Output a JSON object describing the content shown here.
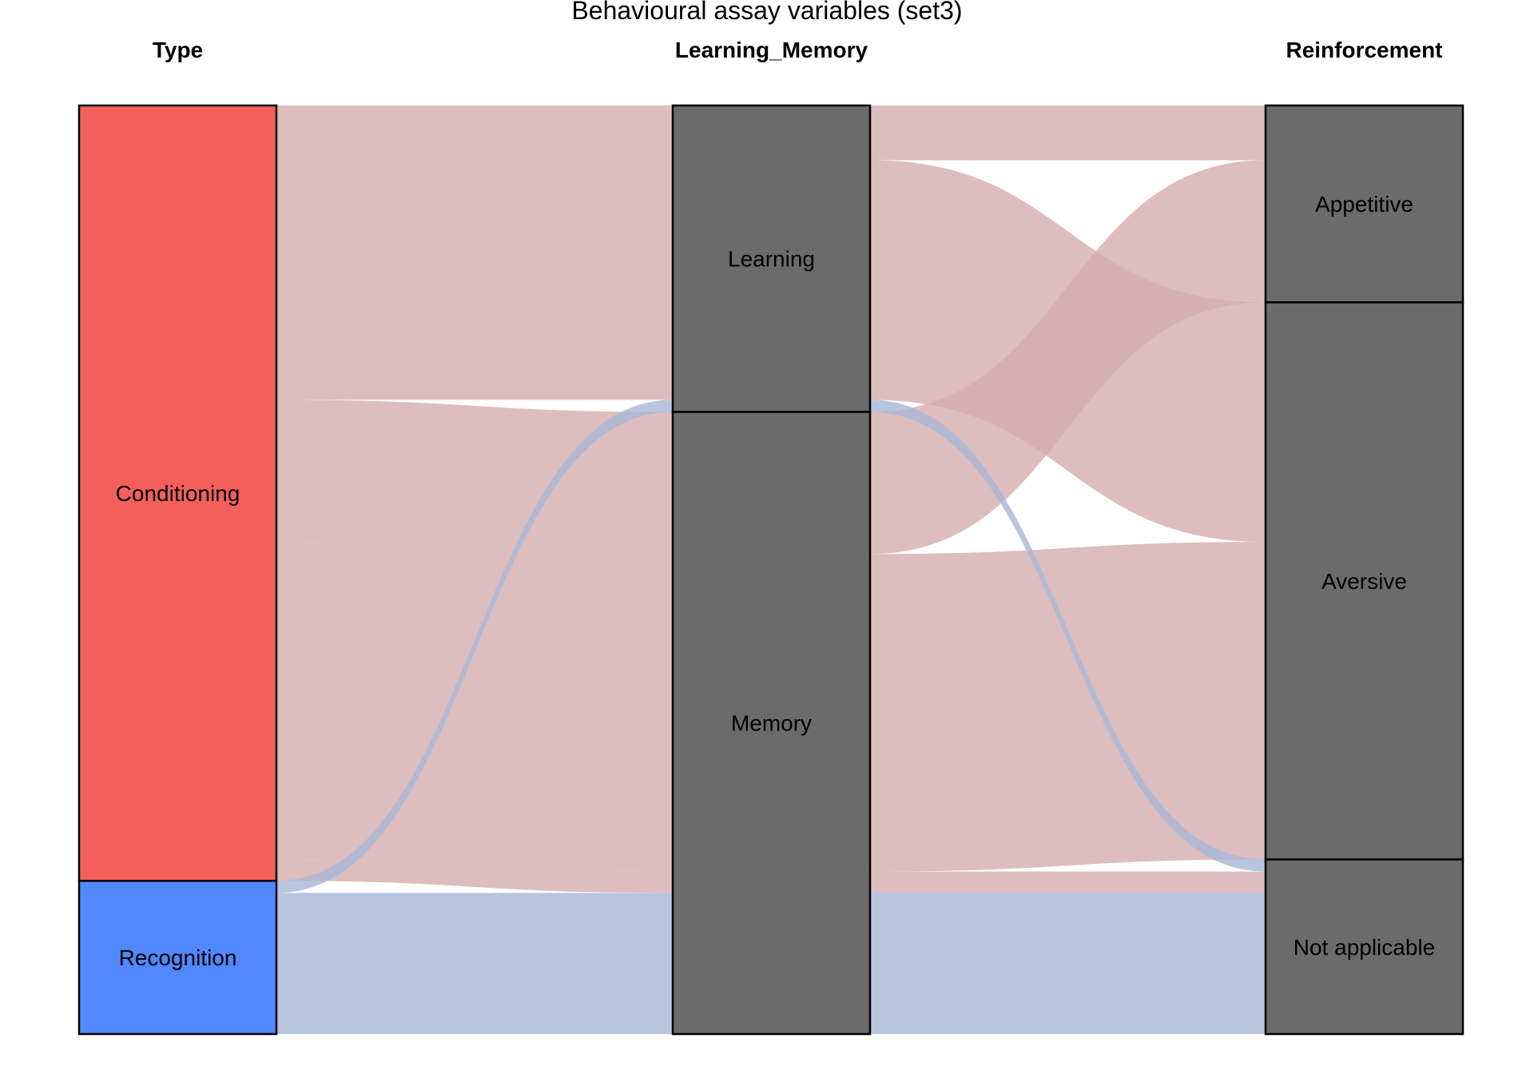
{
  "chart_data": {
    "type": "alluvial",
    "title": "Behavioural assay  variables (set3)",
    "axes": [
      "Type",
      "Learning_Memory",
      "Reinforcement"
    ],
    "colors": {
      "Conditioning": "#F3605C",
      "Recognition": "#5088FF",
      "stratum": "#6B6B6B",
      "flow_Conditioning": "#D5AFAE",
      "flow_Recognition": "#AAB8D8",
      "border": "#000000"
    },
    "strata": [
      {
        "axis": "Type",
        "items": [
          {
            "label": "Conditioning",
            "value": 83.5
          },
          {
            "label": "Recognition",
            "value": 16.5
          }
        ]
      },
      {
        "axis": "Learning_Memory",
        "items": [
          {
            "label": "Learning",
            "value": 33.0
          },
          {
            "label": "Memory",
            "value": 67.0
          }
        ]
      },
      {
        "axis": "Reinforcement",
        "items": [
          {
            "label": "Appetitive",
            "value": 21.2
          },
          {
            "label": "Aversive",
            "value": 60.0
          },
          {
            "label": "Not applicable",
            "value": 18.8
          }
        ]
      }
    ],
    "flows": [
      {
        "Type": "Conditioning",
        "Learning_Memory": "Learning",
        "Reinforcement": "Appetitive",
        "value": 5.9
      },
      {
        "Type": "Conditioning",
        "Learning_Memory": "Learning",
        "Reinforcement": "Aversive",
        "value": 25.8
      },
      {
        "Type": "Conditioning",
        "Learning_Memory": "Memory",
        "Reinforcement": "Appetitive",
        "value": 15.3
      },
      {
        "Type": "Conditioning",
        "Learning_Memory": "Memory",
        "Reinforcement": "Aversive",
        "value": 34.2
      },
      {
        "Type": "Conditioning",
        "Learning_Memory": "Memory",
        "Reinforcement": "Not applicable",
        "value": 2.3
      },
      {
        "Type": "Recognition",
        "Learning_Memory": "Learning",
        "Reinforcement": "Not applicable",
        "value": 1.3
      },
      {
        "Type": "Recognition",
        "Learning_Memory": "Memory",
        "Reinforcement": "Not applicable",
        "value": 15.2
      }
    ]
  }
}
